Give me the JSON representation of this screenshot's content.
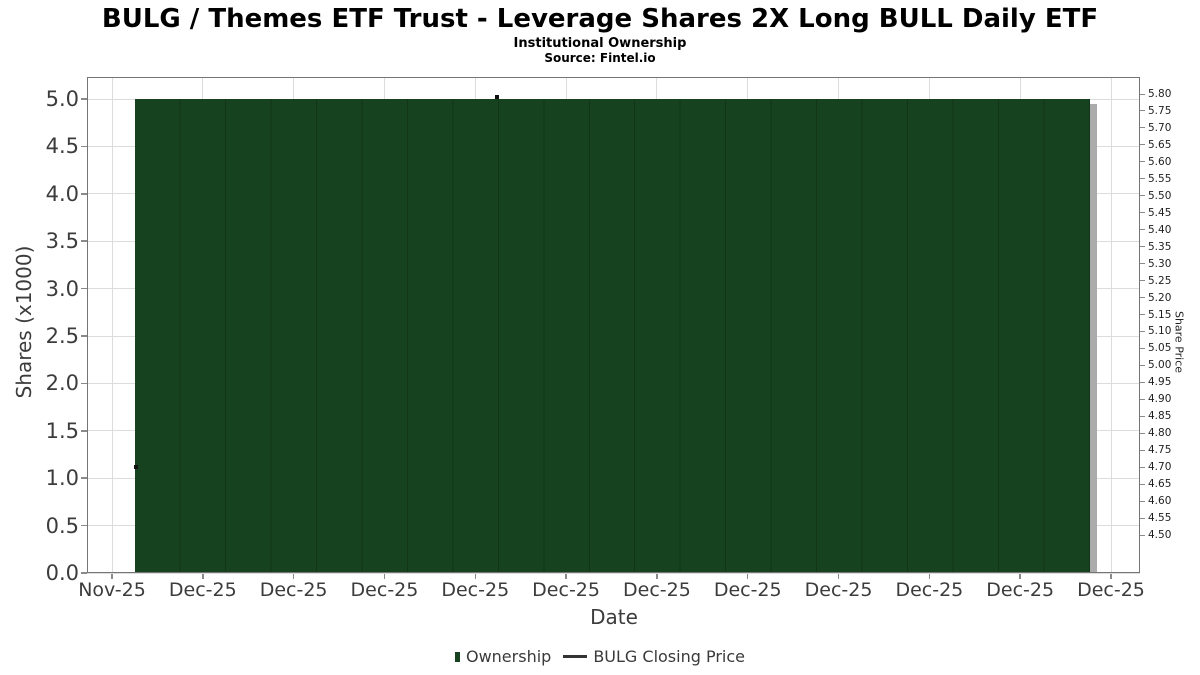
{
  "title": "BULG / Themes ETF Trust - Leverage Shares 2X Long BULL Daily ETF",
  "subtitle": "Institutional Ownership",
  "source": "Source: Fintel.io",
  "chart_data": {
    "type": "bar",
    "title": "BULG / Themes ETF Trust - Leverage Shares 2X Long BULL Daily ETF",
    "subtitle": "Institutional Ownership",
    "source": "Source: Fintel.io",
    "xlabel": "Date",
    "ylabel_left": "Shares (x1000)",
    "ylabel_right": "Share Price",
    "grid": true,
    "legend_position": "bottom-center",
    "x_tick_labels": [
      "Nov-25",
      "Dec-25",
      "Dec-25",
      "Dec-25",
      "Dec-25",
      "Dec-25",
      "Dec-25",
      "Dec-25",
      "Dec-25",
      "Dec-25",
      "Dec-25",
      "Dec-25"
    ],
    "left_axis": {
      "ticks": [
        "5.0",
        "4.5",
        "4.0",
        "3.5",
        "3.0",
        "2.5",
        "2.0",
        "1.5",
        "1.0",
        "0.5",
        "0.0"
      ],
      "lim": [
        0.0,
        5.0
      ]
    },
    "right_axis": {
      "ticks": [
        "5.80",
        "5.75",
        "5.70",
        "5.65",
        "5.60",
        "5.55",
        "5.50",
        "5.45",
        "5.40",
        "5.35",
        "5.30",
        "5.25",
        "5.20",
        "5.15",
        "5.10",
        "5.05",
        "5.00",
        "4.95",
        "4.90",
        "4.85",
        "4.80",
        "4.75",
        "4.70",
        "4.65",
        "4.60",
        "4.55",
        "4.50"
      ],
      "lim": [
        4.5,
        5.8
      ]
    },
    "series": [
      {
        "name": "Ownership",
        "type": "bar",
        "axis": "left",
        "color": "#174220",
        "bar_count": 21,
        "value_x1000": 5.0,
        "note": "constant 5.0 (x1000 shares) from late Nov-25 through Dec-25"
      },
      {
        "name": "BULG Closing Price",
        "type": "line",
        "axis": "right",
        "color": "#111111",
        "points": [
          {
            "date": "Nov-25",
            "price": 4.7
          },
          {
            "date": "Dec-25",
            "price": 5.79
          }
        ]
      }
    ]
  },
  "legend": {
    "items": [
      {
        "label": "Ownership",
        "marker": "square",
        "color": "#174220"
      },
      {
        "label": "BULG Closing Price",
        "marker": "line",
        "color": "#333333"
      }
    ]
  }
}
